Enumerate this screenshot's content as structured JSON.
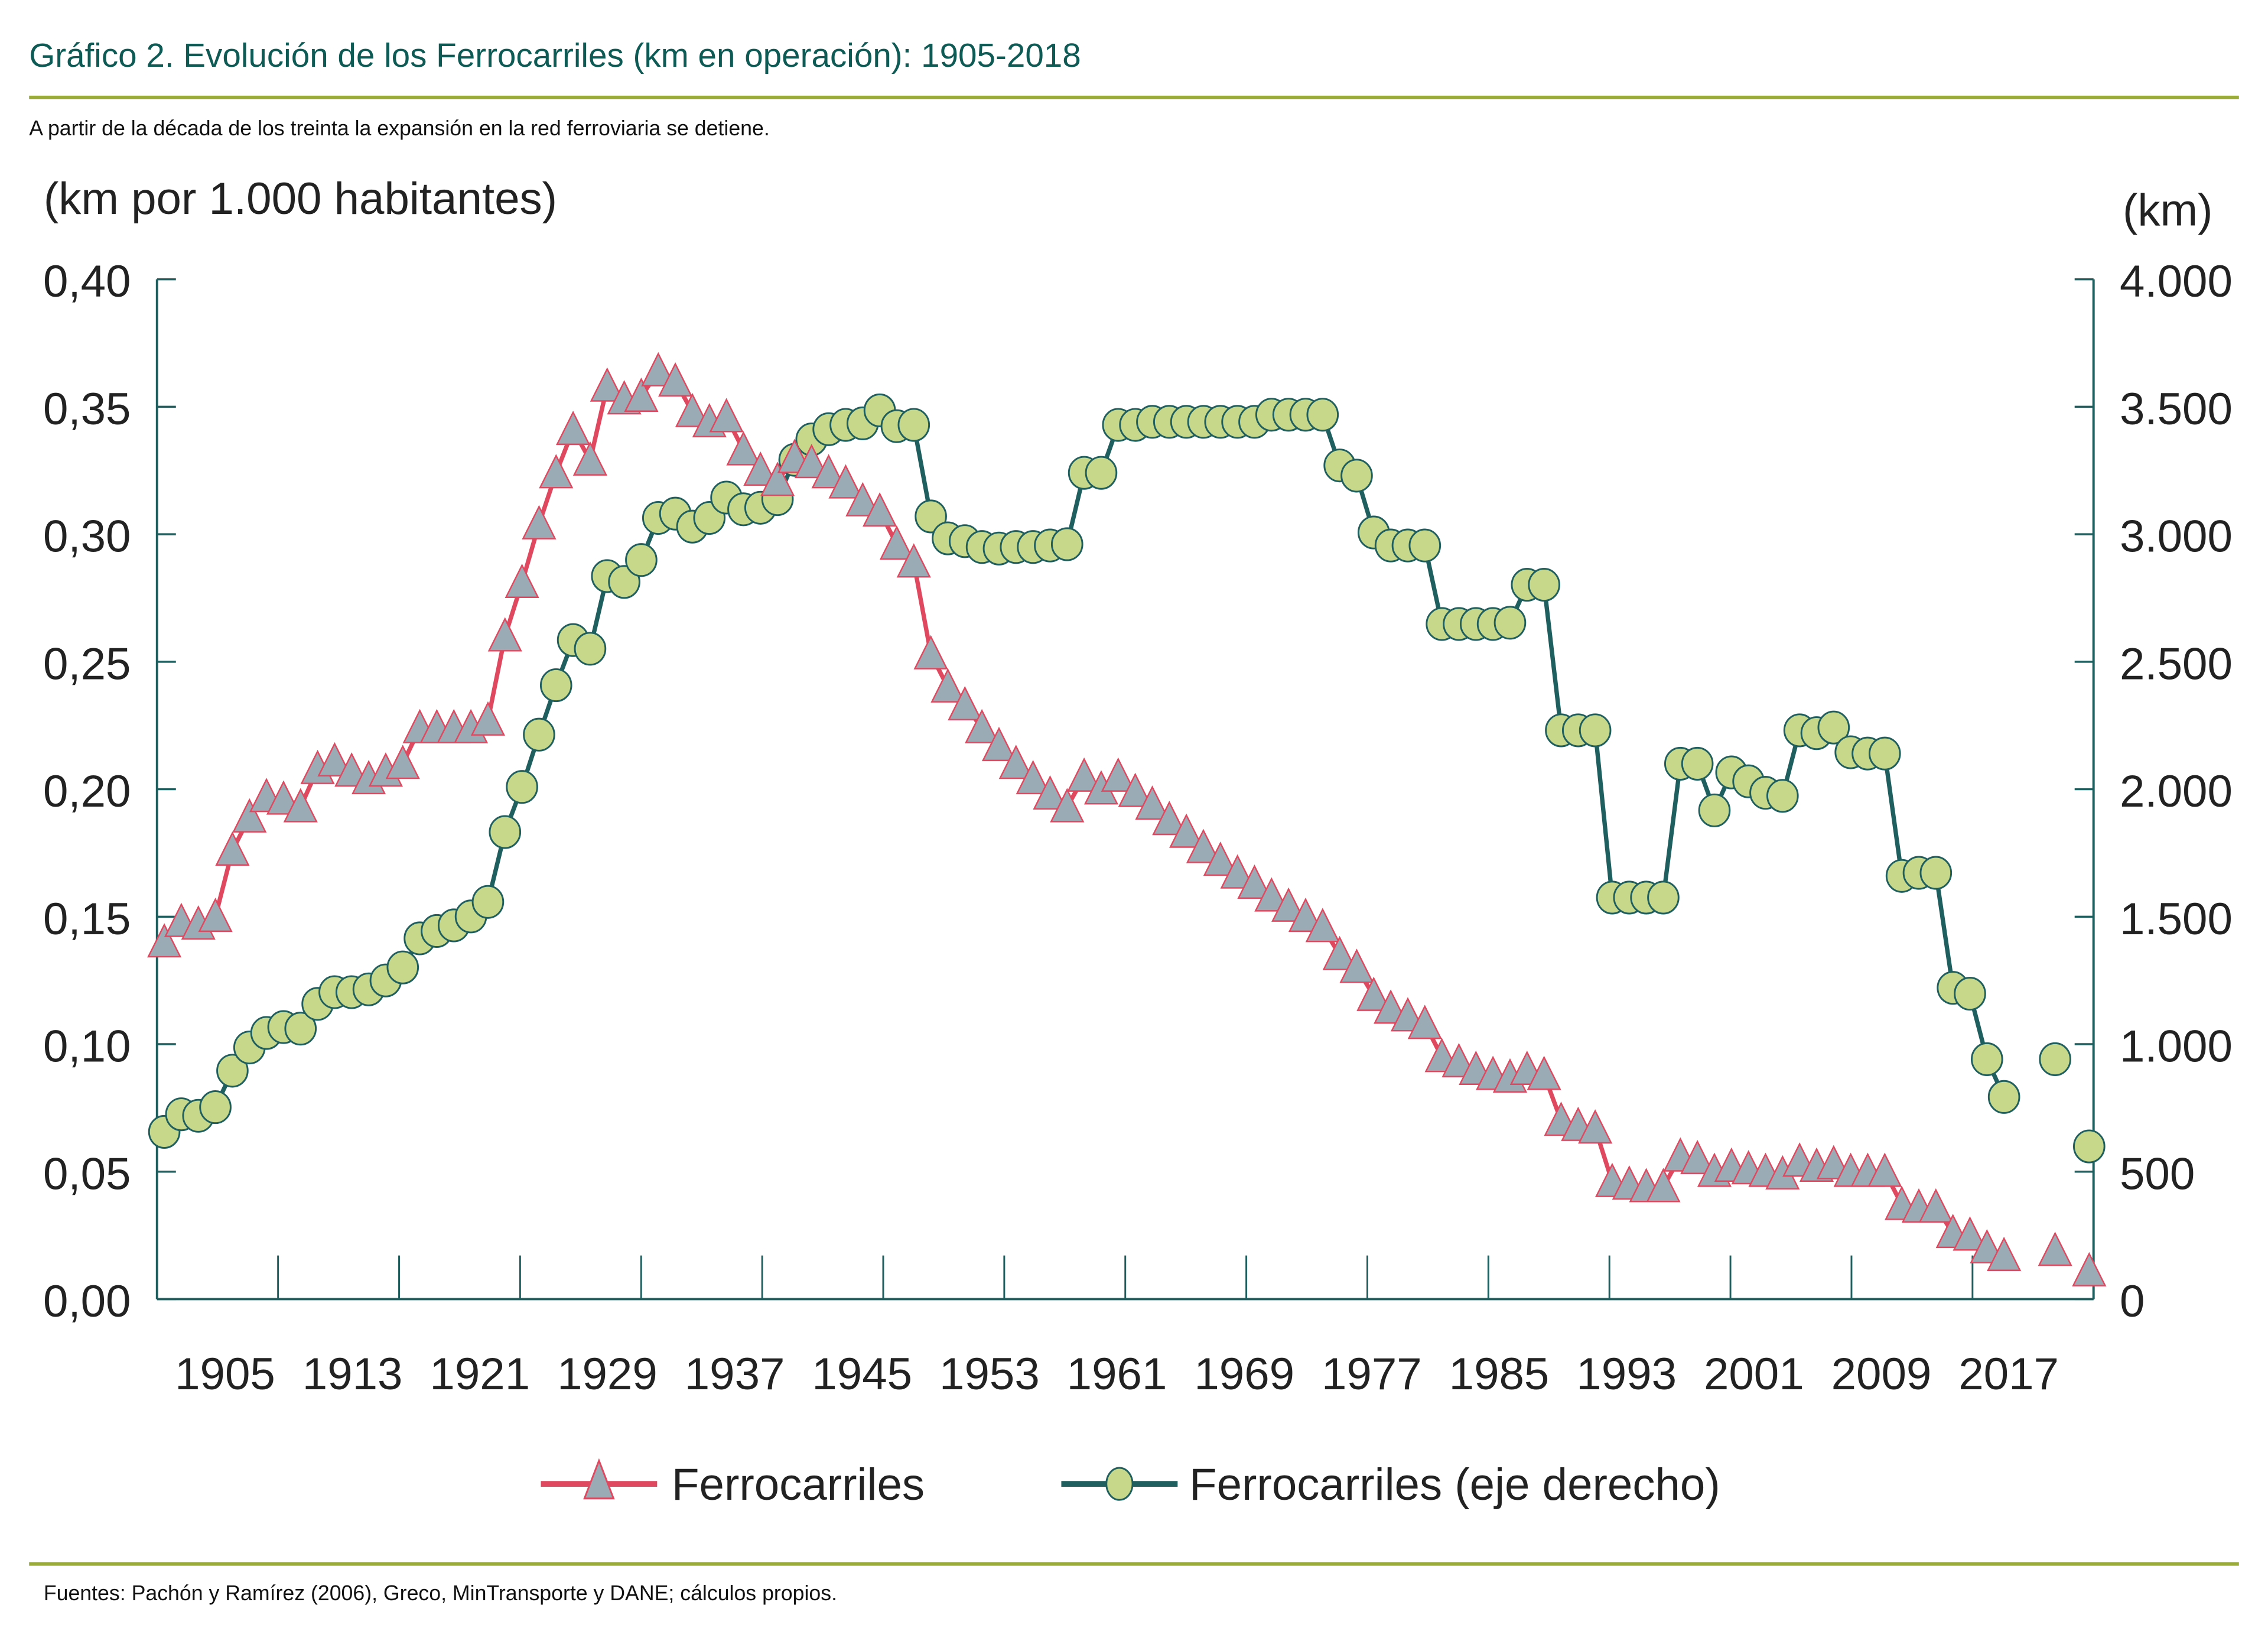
{
  "header": {
    "title": "Gráfico 2. Evolución de los Ferrocarriles (km en operación): 1905-2018",
    "subtitle": "A partir de la década de los treinta la expansión en la red ferroviaria se detiene."
  },
  "footer": {
    "source": "Fuentes: Pachón y Ramírez (2006), Greco, MinTransporte y DANE; cálculos propios."
  },
  "colors": {
    "title": "#0e5a55",
    "rule": "#9aab3c",
    "axis": "#1f5f5f",
    "left_line": "#e0485f",
    "left_marker_fill": "#9aabb5",
    "left_marker_stroke": "#e0485f",
    "right_line": "#1f5f5f",
    "right_marker_fill": "#c8d88a",
    "right_marker_stroke": "#1f5f5f"
  },
  "chart_data": {
    "type": "line",
    "title": "Gráfico 2. Evolución de los Ferrocarriles (km en operación): 1905-2018",
    "ylabel_left": "(km por 1.000 habitantes)",
    "ylabel_right": "(km)",
    "xlabel": "",
    "ylim_left": [
      0,
      0.4
    ],
    "ylim_right": [
      0,
      4000
    ],
    "xlim": [
      1905,
      2018
    ],
    "yticks_left": [
      "0,00",
      "0,05",
      "0,10",
      "0,15",
      "0,20",
      "0,25",
      "0,30",
      "0,35",
      "0,40"
    ],
    "yticks_right": [
      "0",
      "500",
      "1.000",
      "1.500",
      "2.000",
      "2.500",
      "3.000",
      "3.500",
      "4.000"
    ],
    "xtick_labels": [
      "1905",
      "1913",
      "1921",
      "1929",
      "1937",
      "1945",
      "1953",
      "1961",
      "1969",
      "1977",
      "1985",
      "1993",
      "2001",
      "2009",
      "2017"
    ],
    "grid": false,
    "legend_position": "bottom",
    "legend": [
      "Ferrocarriles",
      "Ferrocarriles (eje derecho)"
    ],
    "x": [
      1905,
      1906,
      1907,
      1908,
      1909,
      1910,
      1911,
      1912,
      1913,
      1914,
      1915,
      1916,
      1917,
      1918,
      1919,
      1920,
      1921,
      1922,
      1923,
      1924,
      1925,
      1926,
      1927,
      1928,
      1929,
      1930,
      1931,
      1932,
      1933,
      1934,
      1935,
      1936,
      1937,
      1938,
      1939,
      1940,
      1941,
      1942,
      1943,
      1944,
      1945,
      1946,
      1947,
      1948,
      1949,
      1950,
      1951,
      1952,
      1953,
      1954,
      1955,
      1956,
      1957,
      1958,
      1959,
      1960,
      1961,
      1962,
      1963,
      1964,
      1965,
      1966,
      1967,
      1968,
      1969,
      1970,
      1971,
      1972,
      1973,
      1974,
      1975,
      1976,
      1977,
      1978,
      1979,
      1980,
      1981,
      1982,
      1983,
      1984,
      1985,
      1986,
      1987,
      1988,
      1989,
      1990,
      1991,
      1992,
      1993,
      1994,
      1995,
      1996,
      1997,
      1998,
      1999,
      2000,
      2001,
      2002,
      2003,
      2004,
      2005,
      2006,
      2007,
      2008,
      2009,
      2010,
      2011,
      2012,
      2013,
      2014,
      2015,
      2016,
      2017,
      2018
    ],
    "series": [
      {
        "name": "Ferrocarriles",
        "axis": "left",
        "marker": "triangle",
        "values": [
          0.14,
          0.148,
          0.147,
          0.15,
          0.176,
          0.189,
          0.197,
          0.196,
          0.193,
          0.208,
          0.211,
          0.207,
          0.204,
          0.207,
          0.21,
          0.224,
          0.224,
          0.224,
          0.224,
          0.227,
          0.26,
          0.281,
          0.304,
          0.324,
          0.341,
          0.329,
          0.358,
          0.353,
          0.354,
          0.364,
          0.36,
          0.348,
          0.344,
          0.346,
          0.333,
          0.325,
          0.321,
          0.33,
          0.328,
          0.324,
          0.32,
          0.313,
          0.309,
          0.296,
          0.289,
          0.253,
          0.24,
          0.233,
          0.224,
          0.217,
          0.21,
          0.204,
          0.198,
          0.193,
          0.205,
          0.2,
          0.205,
          0.199,
          0.194,
          0.188,
          0.183,
          0.177,
          0.172,
          0.167,
          0.163,
          0.158,
          0.154,
          0.15,
          0.146,
          0.135,
          0.13,
          0.119,
          0.114,
          0.111,
          0.108,
          0.095,
          0.093,
          0.09,
          0.088,
          0.087,
          0.09,
          0.088,
          0.07,
          0.068,
          0.067,
          0.046,
          0.045,
          0.044,
          0.044,
          0.056,
          0.055,
          0.05,
          0.052,
          0.051,
          0.05,
          0.049,
          0.054,
          0.052,
          0.053,
          0.05,
          0.05,
          0.05,
          0.037,
          0.036,
          0.036,
          0.026,
          0.025,
          0.02,
          0.017,
          null,
          null,
          0.019,
          null,
          0.011
        ]
      },
      {
        "name": "Ferrocarriles (eje derecho)",
        "axis": "right",
        "marker": "circle",
        "values": [
          656,
          725,
          719,
          753,
          896,
          987,
          1044,
          1067,
          1061,
          1158,
          1204,
          1204,
          1215,
          1250,
          1301,
          1415,
          1444,
          1466,
          1501,
          1558,
          1832,
          2009,
          2214,
          2408,
          2585,
          2551,
          2836,
          2813,
          2899,
          3064,
          3081,
          3030,
          3064,
          3144,
          3098,
          3104,
          3138,
          3292,
          3372,
          3412,
          3429,
          3435,
          3486,
          3424,
          3429,
          3070,
          2984,
          2973,
          2950,
          2944,
          2950,
          2950,
          2956,
          2961,
          3241,
          3241,
          3429,
          3429,
          3441,
          3441,
          3441,
          3441,
          3441,
          3441,
          3441,
          3469,
          3469,
          3469,
          3469,
          3270,
          3230,
          3007,
          2956,
          2956,
          2956,
          2648,
          2648,
          2648,
          2648,
          2653,
          2802,
          2802,
          2231,
          2231,
          2231,
          1575,
          1575,
          1575,
          1575,
          2100,
          2100,
          1917,
          2066,
          2031,
          1986,
          1974,
          2231,
          2220,
          2242,
          2145,
          2140,
          2140,
          1660,
          1672,
          1672,
          1221,
          1198,
          941,
          793,
          null,
          null,
          941,
          null,
          599
        ]
      }
    ]
  }
}
